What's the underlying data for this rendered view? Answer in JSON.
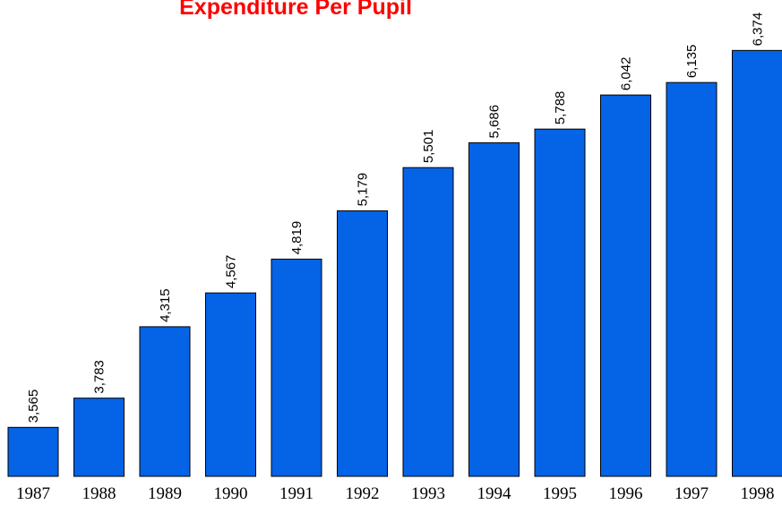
{
  "chart_data": {
    "type": "bar",
    "title": "Expenditure Per Pupil",
    "categories": [
      "1987",
      "1988",
      "1989",
      "1990",
      "1991",
      "1992",
      "1993",
      "1994",
      "1995",
      "1996",
      "1997",
      "1998"
    ],
    "values": [
      3565,
      3783,
      4315,
      4567,
      4819,
      5179,
      5501,
      5686,
      5788,
      6042,
      6135,
      6374
    ],
    "value_labels": [
      "3,565",
      "3,783",
      "4,315",
      "4,567",
      "4,819",
      "5,179",
      "5,501",
      "5,686",
      "5,788",
      "6,042",
      "6,135",
      "6,374"
    ],
    "color": "#0563e6",
    "ylim": [
      3200,
      6750
    ]
  }
}
